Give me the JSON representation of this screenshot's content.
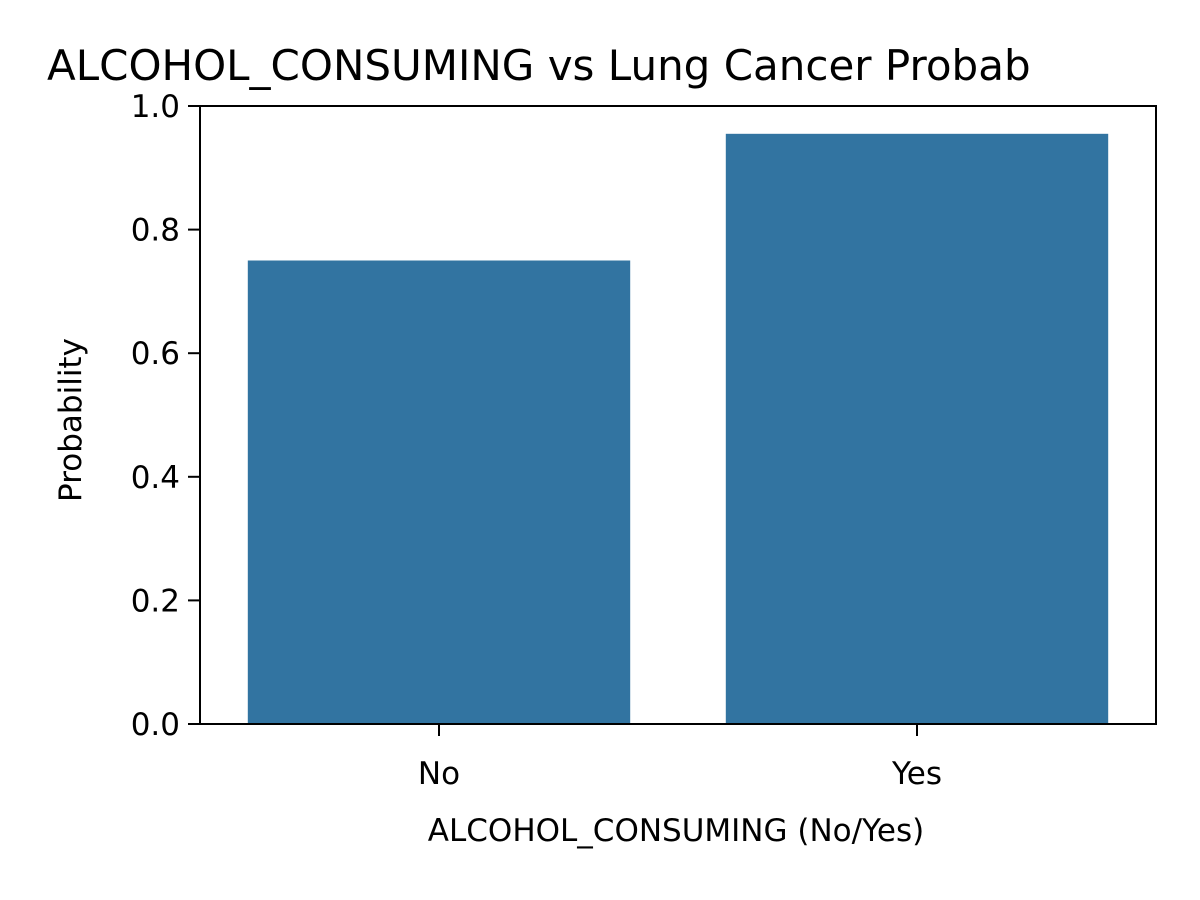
{
  "chart_data": {
    "type": "bar",
    "title": "ALCOHOL_CONSUMING vs Lung Cancer Probab",
    "xlabel": "ALCOHOL_CONSUMING (No/Yes)",
    "ylabel": "Probability",
    "categories": [
      "No",
      "Yes"
    ],
    "values": [
      0.75,
      0.955
    ],
    "ylim": [
      0,
      1
    ],
    "yticks": [
      0,
      0.2,
      0.4,
      0.6,
      0.8,
      1
    ],
    "ytick_labels": [
      "0.0",
      "0.2",
      "0.4",
      "0.6",
      "0.8",
      "1.0"
    ],
    "grid": false,
    "legend": "none",
    "colors": {
      "bar": "#3274a1",
      "axis": "#000000",
      "background": "#ffffff"
    }
  }
}
